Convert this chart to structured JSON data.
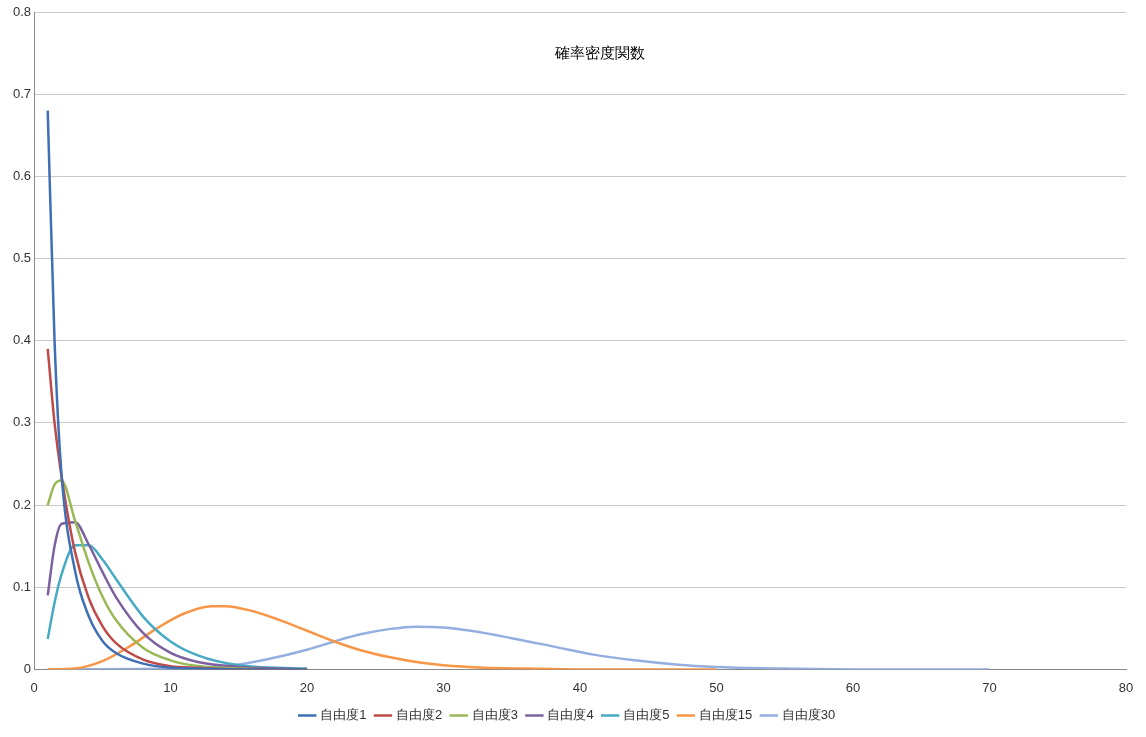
{
  "chart_data": {
    "type": "line",
    "title": "確率密度関数",
    "xlim": [
      0,
      80
    ],
    "xticks": [
      0,
      10,
      20,
      30,
      40,
      50,
      60,
      70,
      80
    ],
    "ylim": [
      0,
      0.8
    ],
    "yticks": [
      0,
      0.1,
      0.2,
      0.3,
      0.4,
      0.5,
      0.6,
      0.7,
      0.8
    ],
    "grid": "y",
    "legend": "bottom",
    "marker": "none",
    "line_style": "solid",
    "series": [
      {
        "name": "自由度1",
        "color": "#3f6fb5",
        "x": [
          1,
          1.5,
          2,
          3,
          4,
          5,
          6,
          8,
          10,
          12,
          15,
          20
        ],
        "values": [
          0.68,
          0.4,
          0.24,
          0.12,
          0.065,
          0.035,
          0.02,
          0.007,
          0.002,
          0.001,
          0,
          0
        ]
      },
      {
        "name": "自由度2",
        "color": "#be4b48",
        "x": [
          1,
          1.5,
          2,
          3,
          4,
          5,
          6,
          8,
          10,
          12,
          15,
          20
        ],
        "values": [
          0.39,
          0.3,
          0.236,
          0.143,
          0.087,
          0.053,
          0.032,
          0.012,
          0.004,
          0.002,
          0,
          0
        ]
      },
      {
        "name": "自由度3",
        "color": "#98b954",
        "x": [
          1,
          1.5,
          2,
          3,
          4,
          5,
          6,
          8,
          10,
          12,
          15,
          20
        ],
        "values": [
          0.2,
          0.225,
          0.23,
          0.181,
          0.13,
          0.089,
          0.06,
          0.026,
          0.011,
          0.004,
          0.001,
          0
        ]
      },
      {
        "name": "自由度4",
        "color": "#7d60a0",
        "x": [
          1,
          1.5,
          2,
          3,
          4,
          5,
          6,
          8,
          10,
          12,
          15,
          20
        ],
        "values": [
          0.09,
          0.15,
          0.177,
          0.179,
          0.152,
          0.119,
          0.088,
          0.044,
          0.02,
          0.009,
          0.003,
          0
        ]
      },
      {
        "name": "自由度5",
        "color": "#46aac5",
        "x": [
          1,
          1.5,
          2,
          3,
          4,
          5,
          6,
          8,
          10,
          12,
          15,
          20
        ],
        "values": [
          0.037,
          0.081,
          0.115,
          0.151,
          0.151,
          0.134,
          0.11,
          0.064,
          0.034,
          0.017,
          0.005,
          0.001
        ]
      },
      {
        "name": "自由度15",
        "color": "#f79646",
        "x": [
          1,
          3,
          5,
          7,
          9,
          11,
          13,
          14,
          16,
          18,
          20,
          22,
          24,
          26,
          28,
          30,
          33,
          36,
          40,
          45,
          50
        ],
        "values": [
          0,
          0.001,
          0.01,
          0.028,
          0.05,
          0.068,
          0.077,
          0.077,
          0.071,
          0.06,
          0.047,
          0.034,
          0.023,
          0.015,
          0.009,
          0.005,
          0.002,
          0.001,
          0,
          0,
          0
        ]
      },
      {
        "name": "自由度30",
        "color": "#95aee0",
        "x": [
          1,
          10,
          13,
          15,
          17,
          20,
          22,
          24,
          26,
          28,
          30,
          32,
          35,
          38,
          41,
          44,
          47,
          50,
          55,
          60,
          70
        ],
        "values": [
          0,
          0.001,
          0.003,
          0.006,
          0.012,
          0.024,
          0.034,
          0.043,
          0.049,
          0.052,
          0.051,
          0.047,
          0.038,
          0.028,
          0.018,
          0.011,
          0.006,
          0.003,
          0.001,
          0,
          0
        ]
      }
    ]
  }
}
